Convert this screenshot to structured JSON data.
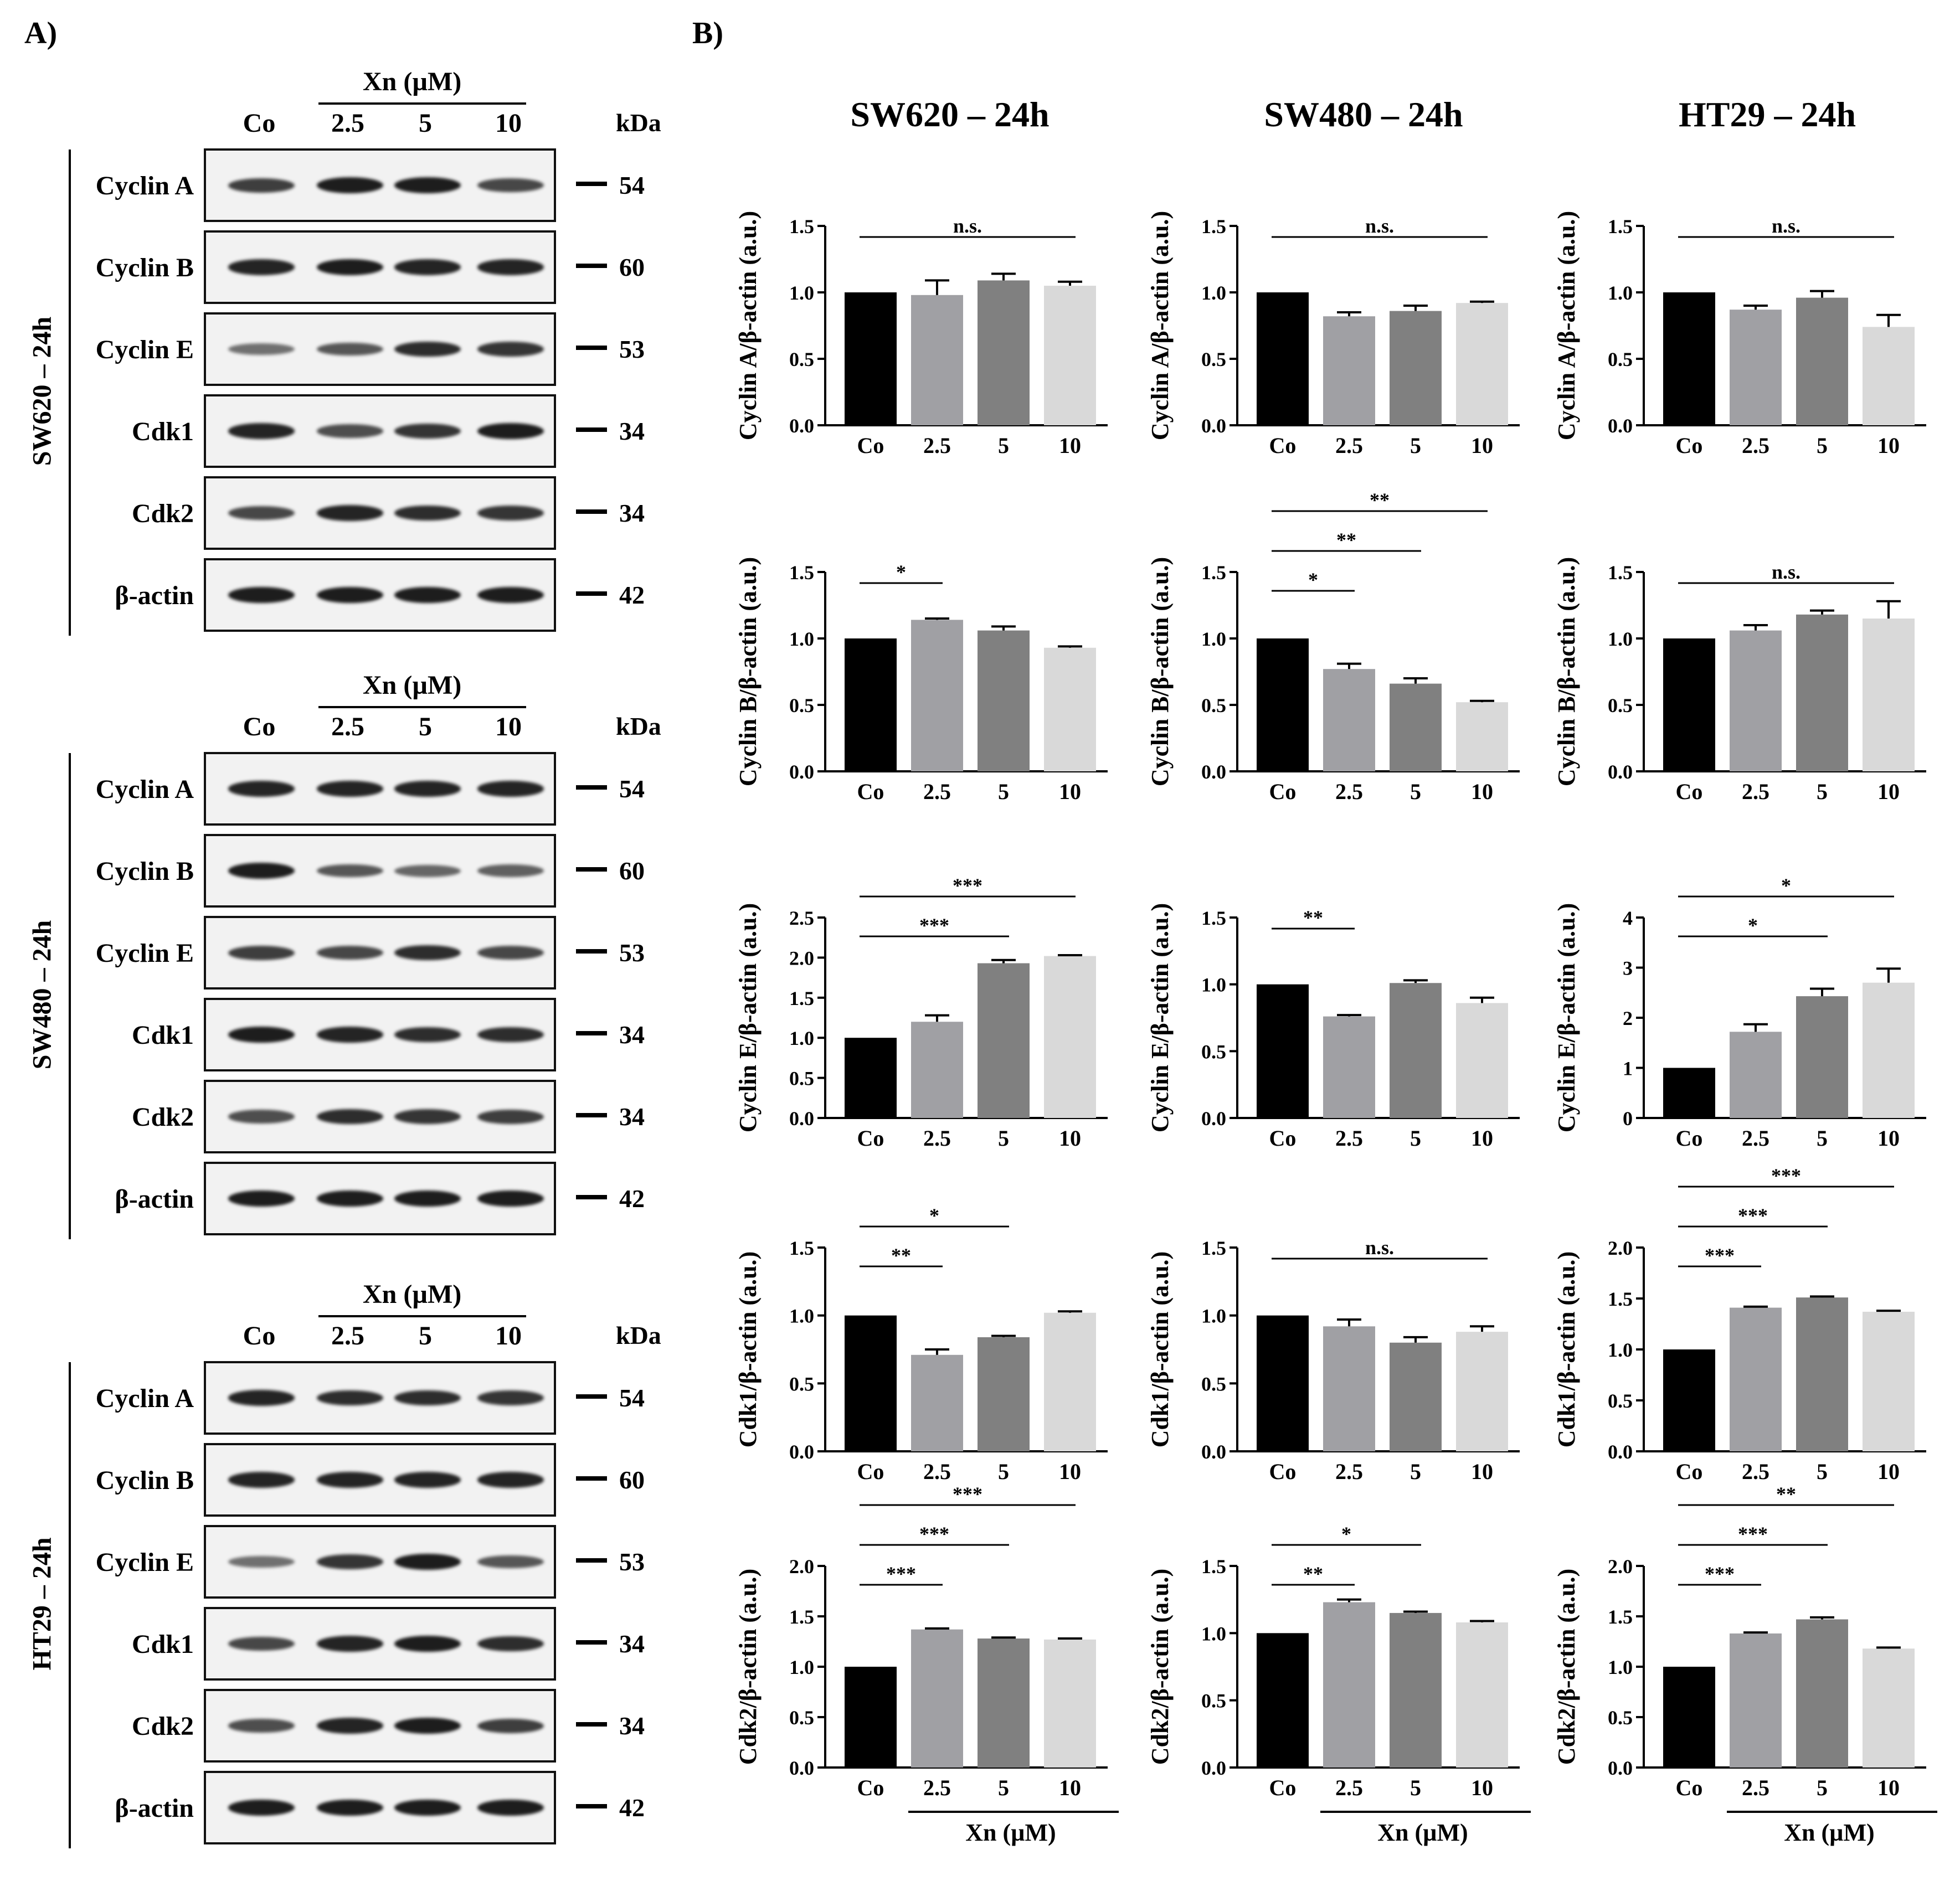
{
  "panels": {
    "a": "A)",
    "b": "B)"
  },
  "blots": {
    "treatment_label": "Xn (µM)",
    "lanes": [
      "Co",
      "2.5",
      "5",
      "10"
    ],
    "kda_label": "kDa",
    "groups": [
      {
        "side_label": "SW620 – 24h",
        "rows": [
          {
            "protein": "Cyclin A",
            "kda": "54",
            "bands": [
              0.75,
              0.95,
              0.95,
              0.7
            ]
          },
          {
            "protein": "Cyclin B",
            "kda": "60",
            "bands": [
              0.9,
              0.95,
              0.9,
              0.9
            ]
          },
          {
            "protein": "Cyclin E",
            "kda": "53",
            "bands": [
              0.45,
              0.6,
              0.85,
              0.8
            ]
          },
          {
            "protein": "Cdk1",
            "kda": "34",
            "bands": [
              0.9,
              0.65,
              0.8,
              0.95
            ]
          },
          {
            "protein": "Cdk2",
            "kda": "34",
            "bands": [
              0.7,
              0.9,
              0.85,
              0.8
            ]
          },
          {
            "protein": "β-actin",
            "kda": "42",
            "bands": [
              0.95,
              0.95,
              0.95,
              0.95
            ]
          }
        ]
      },
      {
        "side_label": "SW480 – 24h",
        "rows": [
          {
            "protein": "Cyclin A",
            "kda": "54",
            "bands": [
              0.9,
              0.9,
              0.9,
              0.9
            ]
          },
          {
            "protein": "Cyclin B",
            "kda": "60",
            "bands": [
              0.95,
              0.6,
              0.5,
              0.55
            ]
          },
          {
            "protein": "Cyclin E",
            "kda": "53",
            "bands": [
              0.75,
              0.7,
              0.85,
              0.7
            ]
          },
          {
            "protein": "Cdk1",
            "kda": "34",
            "bands": [
              0.95,
              0.9,
              0.85,
              0.85
            ]
          },
          {
            "protein": "Cdk2",
            "kda": "34",
            "bands": [
              0.65,
              0.85,
              0.8,
              0.75
            ]
          },
          {
            "protein": "β-actin",
            "kda": "42",
            "bands": [
              0.95,
              0.95,
              0.95,
              0.95
            ]
          }
        ]
      },
      {
        "side_label": "HT29 – 24h",
        "rows": [
          {
            "protein": "Cyclin A",
            "kda": "54",
            "bands": [
              0.9,
              0.85,
              0.85,
              0.8
            ]
          },
          {
            "protein": "Cyclin B",
            "kda": "60",
            "bands": [
              0.9,
              0.9,
              0.9,
              0.9
            ]
          },
          {
            "protein": "Cyclin E",
            "kda": "53",
            "bands": [
              0.45,
              0.8,
              0.95,
              0.6
            ]
          },
          {
            "protein": "Cdk1",
            "kda": "34",
            "bands": [
              0.7,
              0.9,
              0.95,
              0.85
            ]
          },
          {
            "protein": "Cdk2",
            "kda": "34",
            "bands": [
              0.65,
              0.9,
              0.95,
              0.75
            ]
          },
          {
            "protein": "β-actin",
            "kda": "42",
            "bands": [
              0.95,
              0.95,
              0.95,
              0.95
            ]
          }
        ]
      }
    ]
  },
  "columns": [
    "SW620 – 24h",
    "SW480 – 24h",
    "HT29 – 24h"
  ],
  "x_axis_title": "Xn (µM)",
  "bar_colors": [
    "#000000",
    "#a0a0a4",
    "#808080",
    "#d9d9d9"
  ],
  "chart_data": [
    {
      "type": "bar",
      "cell": "SW620 Cyclin A",
      "ylabel": "Cyclin A/β-actin (a.u.)",
      "categories": [
        "Co",
        "2.5",
        "5",
        "10"
      ],
      "values": [
        1.0,
        0.98,
        1.09,
        1.05
      ],
      "errors": [
        0,
        0.11,
        0.05,
        0.03
      ],
      "ylim": [
        0,
        1.5
      ],
      "yticks": [
        "0.0",
        "0.5",
        "1.0",
        "1.5"
      ],
      "sig": [
        {
          "from": 0,
          "to": 3,
          "label": "n.s."
        }
      ]
    },
    {
      "type": "bar",
      "cell": "SW480 Cyclin A",
      "ylabel": "Cyclin A/β-actin (a.u.)",
      "categories": [
        "Co",
        "2.5",
        "5",
        "10"
      ],
      "values": [
        1.0,
        0.82,
        0.86,
        0.92
      ],
      "errors": [
        0,
        0.03,
        0.04,
        0.01
      ],
      "ylim": [
        0,
        1.5
      ],
      "yticks": [
        "0.0",
        "0.5",
        "1.0",
        "1.5"
      ],
      "sig": [
        {
          "from": 0,
          "to": 3,
          "label": "n.s."
        }
      ]
    },
    {
      "type": "bar",
      "cell": "HT29 Cyclin A",
      "ylabel": "Cyclin A/β-actin (a.u.)",
      "categories": [
        "Co",
        "2.5",
        "5",
        "10"
      ],
      "values": [
        1.0,
        0.87,
        0.96,
        0.74
      ],
      "errors": [
        0,
        0.03,
        0.05,
        0.09
      ],
      "ylim": [
        0,
        1.5
      ],
      "yticks": [
        "0.0",
        "0.5",
        "1.0",
        "1.5"
      ],
      "sig": [
        {
          "from": 0,
          "to": 3,
          "label": "n.s."
        }
      ]
    },
    {
      "type": "bar",
      "cell": "SW620 Cyclin B",
      "ylabel": "Cyclin B/β-actin (a.u.)",
      "categories": [
        "Co",
        "2.5",
        "5",
        "10"
      ],
      "values": [
        1.0,
        1.14,
        1.06,
        0.93
      ],
      "errors": [
        0,
        0.01,
        0.03,
        0.01
      ],
      "ylim": [
        0,
        1.5
      ],
      "yticks": [
        "0.0",
        "0.5",
        "1.0",
        "1.5"
      ],
      "sig": [
        {
          "from": 0,
          "to": 1,
          "label": "*"
        }
      ]
    },
    {
      "type": "bar",
      "cell": "SW480 Cyclin B",
      "ylabel": "Cyclin B/β-actin (a.u.)",
      "categories": [
        "Co",
        "2.5",
        "5",
        "10"
      ],
      "values": [
        1.0,
        0.77,
        0.66,
        0.52
      ],
      "errors": [
        0,
        0.04,
        0.04,
        0.01
      ],
      "ylim": [
        0,
        1.5
      ],
      "yticks": [
        "0.0",
        "0.5",
        "1.0",
        "1.5"
      ],
      "sig": [
        {
          "from": 0,
          "to": 1,
          "label": "*"
        },
        {
          "from": 0,
          "to": 2,
          "label": "**"
        },
        {
          "from": 0,
          "to": 3,
          "label": "**"
        }
      ]
    },
    {
      "type": "bar",
      "cell": "HT29 Cyclin B",
      "ylabel": "Cyclin B/β-actin (a.u.)",
      "categories": [
        "Co",
        "2.5",
        "5",
        "10"
      ],
      "values": [
        1.0,
        1.06,
        1.18,
        1.15
      ],
      "errors": [
        0,
        0.04,
        0.03,
        0.13
      ],
      "ylim": [
        0,
        1.5
      ],
      "yticks": [
        "0.0",
        "0.5",
        "1.0",
        "1.5"
      ],
      "sig": [
        {
          "from": 0,
          "to": 3,
          "label": "n.s."
        }
      ]
    },
    {
      "type": "bar",
      "cell": "SW620 Cyclin E",
      "ylabel": "Cyclin E/β-actin (a.u.)",
      "categories": [
        "Co",
        "2.5",
        "5",
        "10"
      ],
      "values": [
        1.0,
        1.2,
        1.93,
        2.02
      ],
      "errors": [
        0,
        0.08,
        0.04,
        0.01
      ],
      "ylim": [
        0,
        2.5
      ],
      "yticks": [
        "0.0",
        "0.5",
        "1.0",
        "1.5",
        "2.0",
        "2.5"
      ],
      "sig": [
        {
          "from": 0,
          "to": 2,
          "label": "***"
        },
        {
          "from": 0,
          "to": 3,
          "label": "***"
        }
      ]
    },
    {
      "type": "bar",
      "cell": "SW480 Cyclin E",
      "ylabel": "Cyclin E/β-actin (a.u.)",
      "categories": [
        "Co",
        "2.5",
        "5",
        "10"
      ],
      "values": [
        1.0,
        0.76,
        1.01,
        0.86
      ],
      "errors": [
        0,
        0.01,
        0.02,
        0.04
      ],
      "ylim": [
        0,
        1.5
      ],
      "yticks": [
        "0.0",
        "0.5",
        "1.0",
        "1.5"
      ],
      "sig": [
        {
          "from": 0,
          "to": 1,
          "label": "**"
        }
      ]
    },
    {
      "type": "bar",
      "cell": "HT29 Cyclin E",
      "ylabel": "Cyclin E/β-actin (a.u.)",
      "categories": [
        "Co",
        "2.5",
        "5",
        "10"
      ],
      "values": [
        1.0,
        1.72,
        2.43,
        2.7
      ],
      "errors": [
        0,
        0.15,
        0.15,
        0.28
      ],
      "ylim": [
        0,
        4
      ],
      "yticks": [
        "0",
        "1",
        "2",
        "3",
        "4"
      ],
      "sig": [
        {
          "from": 0,
          "to": 2,
          "label": "*"
        },
        {
          "from": 0,
          "to": 3,
          "label": "*"
        }
      ]
    },
    {
      "type": "bar",
      "cell": "SW620 Cdk1",
      "ylabel": "Cdk1/β-actin (a.u.)",
      "categories": [
        "Co",
        "2.5",
        "5",
        "10"
      ],
      "values": [
        1.0,
        0.71,
        0.84,
        1.02
      ],
      "errors": [
        0,
        0.04,
        0.01,
        0.01
      ],
      "ylim": [
        0,
        1.5
      ],
      "yticks": [
        "0.0",
        "0.5",
        "1.0",
        "1.5"
      ],
      "sig": [
        {
          "from": 0,
          "to": 1,
          "label": "**"
        },
        {
          "from": 0,
          "to": 2,
          "label": "*"
        }
      ]
    },
    {
      "type": "bar",
      "cell": "SW480 Cdk1",
      "ylabel": "Cdk1/β-actin (a.u.)",
      "categories": [
        "Co",
        "2.5",
        "5",
        "10"
      ],
      "values": [
        1.0,
        0.92,
        0.8,
        0.88
      ],
      "errors": [
        0,
        0.05,
        0.04,
        0.04
      ],
      "ylim": [
        0,
        1.5
      ],
      "yticks": [
        "0.0",
        "0.5",
        "1.0",
        "1.5"
      ],
      "sig": [
        {
          "from": 0,
          "to": 3,
          "label": "n.s."
        }
      ]
    },
    {
      "type": "bar",
      "cell": "HT29 Cdk1",
      "ylabel": "Cdk1/β-actin (a.u.)",
      "categories": [
        "Co",
        "2.5",
        "5",
        "10"
      ],
      "values": [
        1.0,
        1.41,
        1.51,
        1.37
      ],
      "errors": [
        0,
        0.01,
        0.01,
        0.01
      ],
      "ylim": [
        0,
        2.0
      ],
      "yticks": [
        "0.0",
        "0.5",
        "1.0",
        "1.5",
        "2.0"
      ],
      "sig": [
        {
          "from": 0,
          "to": 1,
          "label": "***"
        },
        {
          "from": 0,
          "to": 2,
          "label": "***"
        },
        {
          "from": 0,
          "to": 3,
          "label": "***"
        }
      ]
    },
    {
      "type": "bar",
      "cell": "SW620 Cdk2",
      "ylabel": "Cdk2/β-actin (a.u.)",
      "categories": [
        "Co",
        "2.5",
        "5",
        "10"
      ],
      "values": [
        1.0,
        1.37,
        1.28,
        1.27
      ],
      "errors": [
        0,
        0.01,
        0.01,
        0.01
      ],
      "ylim": [
        0,
        2.0
      ],
      "yticks": [
        "0.0",
        "0.5",
        "1.0",
        "1.5",
        "2.0"
      ],
      "sig": [
        {
          "from": 0,
          "to": 1,
          "label": "***"
        },
        {
          "from": 0,
          "to": 2,
          "label": "***"
        },
        {
          "from": 0,
          "to": 3,
          "label": "***"
        }
      ]
    },
    {
      "type": "bar",
      "cell": "SW480 Cdk2",
      "ylabel": "Cdk2/β-actin (a.u.)",
      "categories": [
        "Co",
        "2.5",
        "5",
        "10"
      ],
      "values": [
        1.0,
        1.23,
        1.15,
        1.08
      ],
      "errors": [
        0,
        0.02,
        0.01,
        0.01
      ],
      "ylim": [
        0,
        1.5
      ],
      "yticks": [
        "0.0",
        "0.5",
        "1.0",
        "1.5"
      ],
      "sig": [
        {
          "from": 0,
          "to": 1,
          "label": "**"
        },
        {
          "from": 0,
          "to": 2,
          "label": "*"
        }
      ]
    },
    {
      "type": "bar",
      "cell": "HT29 Cdk2",
      "ylabel": "Cdk2/β-actin (a.u.)",
      "categories": [
        "Co",
        "2.5",
        "5",
        "10"
      ],
      "values": [
        1.0,
        1.33,
        1.47,
        1.18
      ],
      "errors": [
        0,
        0.01,
        0.02,
        0.01
      ],
      "ylim": [
        0,
        2.0
      ],
      "yticks": [
        "0.0",
        "0.5",
        "1.0",
        "1.5",
        "2.0"
      ],
      "sig": [
        {
          "from": 0,
          "to": 1,
          "label": "***"
        },
        {
          "from": 0,
          "to": 2,
          "label": "***"
        },
        {
          "from": 0,
          "to": 3,
          "label": "**"
        }
      ]
    }
  ]
}
